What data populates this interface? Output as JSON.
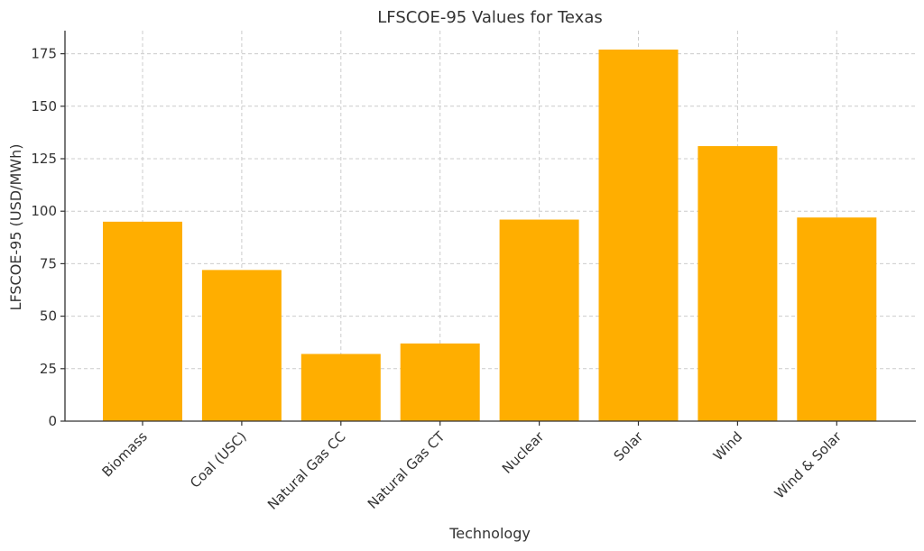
{
  "chart_data": {
    "type": "bar",
    "title": "LFSCOE-95 Values for Texas",
    "xlabel": "Technology",
    "ylabel": "LFSCOE-95 (USD/MWh)",
    "categories": [
      "Biomass",
      "Coal (USC)",
      "Natural Gas CC",
      "Natural Gas CT",
      "Nuclear",
      "Solar",
      "Wind",
      "Wind & Solar"
    ],
    "values": [
      95,
      72,
      32,
      37,
      96,
      177,
      131,
      97
    ],
    "ylim": [
      0,
      186
    ],
    "yticks": [
      0,
      25,
      50,
      75,
      100,
      125,
      150,
      175
    ],
    "grid": true,
    "bar_color": "#ffae00"
  }
}
